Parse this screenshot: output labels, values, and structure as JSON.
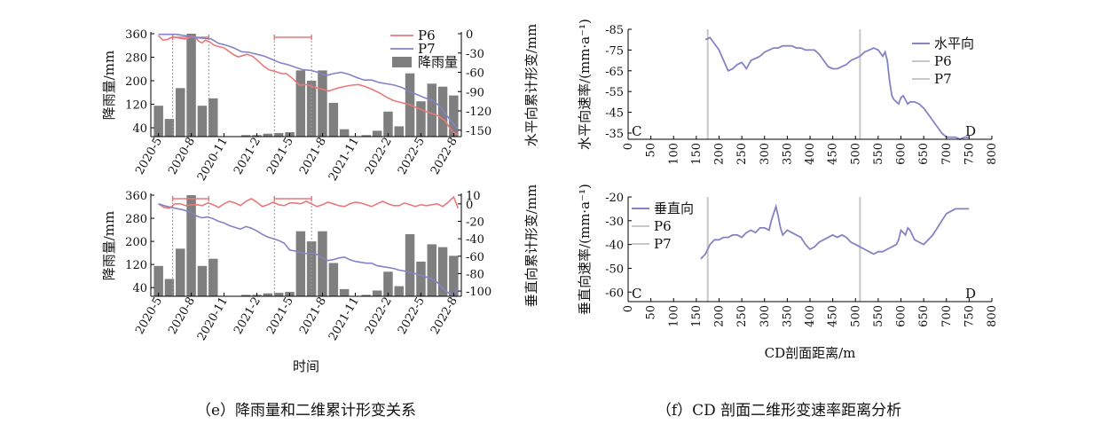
{
  "colors": {
    "p6": "#e8797a",
    "p7": "#8383c6",
    "bar": "#7f7f7f",
    "rain_marker": "#e8797a",
    "vline": "#c8c8c8"
  },
  "captions": {
    "left": "（e）降雨量和二维累计形变关系",
    "right": "（f）CD 剖面二维形变速率距离分析"
  },
  "chart_data": [
    {
      "id": "e-top",
      "type": "bar+line",
      "x_ticks": [
        "2020-5",
        "2020-8",
        "2020-11",
        "2021-2",
        "2021-5",
        "2021-8",
        "2021-11",
        "2022-2",
        "2022-5",
        "2022-8"
      ],
      "xlabel": "",
      "ylabel_left": "降雨量/mm",
      "ylabel_right": "水平向累计形变/mm",
      "ylim_left": [
        10,
        360
      ],
      "yticks_left": [
        40,
        120,
        200,
        280,
        360
      ],
      "ylim_right": [
        -160,
        0
      ],
      "yticks_right": [
        0,
        -30,
        -60,
        -90,
        -120,
        -150
      ],
      "legend": {
        "position": "top-right",
        "entries": [
          "P6",
          "P7",
          "降雨量"
        ]
      },
      "rain_periods": [
        [
          1.3,
          4.6
        ],
        [
          10.6,
          14.0
        ]
      ],
      "bars": {
        "name": "降雨量",
        "months": [
          0,
          1,
          2,
          3,
          4,
          5,
          8,
          9,
          10,
          11,
          12,
          13,
          14,
          15,
          16,
          17,
          18,
          19,
          20,
          21,
          22,
          23,
          24,
          25,
          26,
          27
        ],
        "values": [
          115,
          70,
          175,
          360,
          115,
          140,
          15,
          15,
          20,
          22,
          25,
          235,
          200,
          235,
          125,
          35,
          10,
          15,
          30,
          95,
          45,
          225,
          130,
          190,
          180,
          150
        ]
      },
      "series": [
        {
          "name": "P6",
          "x": [
            0,
            0.4,
            0.8,
            1.3,
            1.7,
            2.2,
            2.6,
            3.0,
            3.4,
            3.7,
            4.0,
            4.3,
            4.7,
            5.1,
            5.5,
            6.0,
            6.5,
            6.9,
            7.3,
            7.7,
            8.1,
            8.6,
            9.1,
            9.6,
            10.1,
            10.5,
            10.9,
            11.3,
            11.7,
            12.3,
            12.9,
            13.5,
            14.2,
            14.9,
            15.6,
            16.3,
            17.0,
            17.7,
            18.3,
            18.9,
            19.6,
            20.2,
            20.9,
            21.5,
            22.2,
            22.9,
            23.6,
            24.3,
            25.0,
            25.6,
            26.2,
            26.7,
            27.1,
            27.4
          ],
          "y": [
            -3,
            -10,
            -9,
            -5,
            -6,
            -8,
            -8,
            -4,
            -6,
            -12,
            -14,
            -10,
            -13,
            -18,
            -20,
            -22,
            -28,
            -33,
            -36,
            -34,
            -32,
            -35,
            -42,
            -50,
            -56,
            -58,
            -60,
            -62,
            -62,
            -70,
            -80,
            -79,
            -83,
            -86,
            -89,
            -85,
            -82,
            -80,
            -79,
            -82,
            -87,
            -92,
            -99,
            -104,
            -107,
            -110,
            -115,
            -120,
            -124,
            -128,
            -135,
            -148,
            -155,
            -157
          ]
        },
        {
          "name": "P7",
          "x": [
            0,
            0.8,
            1.6,
            2.4,
            3.2,
            4.0,
            4.8,
            5.5,
            6.2,
            6.9,
            7.6,
            8.3,
            9.0,
            9.7,
            10.4,
            11.1,
            11.8,
            12.5,
            13.2,
            13.9,
            14.6,
            15.3,
            16.0,
            16.7,
            17.4,
            18.1,
            18.8,
            19.5,
            20.2,
            20.9,
            21.6,
            22.3,
            23.0,
            23.7,
            24.4,
            25.1,
            25.8,
            26.4,
            26.9,
            27.2,
            27.4
          ],
          "y": [
            -1,
            -1,
            -1,
            -3,
            -6,
            -7,
            -8,
            -15,
            -18,
            -22,
            -28,
            -29,
            -32,
            -35,
            -40,
            -45,
            -48,
            -52,
            -56,
            -57,
            -60,
            -65,
            -62,
            -60,
            -63,
            -68,
            -72,
            -72,
            -76,
            -78,
            -80,
            -84,
            -90,
            -95,
            -100,
            -104,
            -114,
            -128,
            -138,
            -145,
            -148
          ]
        }
      ]
    },
    {
      "id": "e-bottom",
      "type": "bar+line",
      "x_ticks": [
        "2020-5",
        "2020-8",
        "2020-11",
        "2021-2",
        "2021-5",
        "2021-8",
        "2021-11",
        "2022-2",
        "2022-5",
        "2022-8"
      ],
      "xlabel": "时间",
      "ylabel_left": "降雨量/mm",
      "ylabel_right": "垂直向累计形变/mm",
      "ylim_left": [
        10,
        360
      ],
      "yticks_left": [
        40,
        120,
        200,
        280,
        360
      ],
      "ylim_right": [
        -106,
        10
      ],
      "yticks_right": [
        10,
        0,
        -20,
        -40,
        -60,
        -80,
        -100
      ],
      "rain_periods": [
        [
          1.3,
          4.6
        ],
        [
          10.6,
          14.0
        ]
      ],
      "bars": {
        "name": "降雨量",
        "months": [
          0,
          1,
          2,
          3,
          4,
          5,
          8,
          9,
          10,
          11,
          12,
          13,
          14,
          15,
          16,
          17,
          18,
          19,
          20,
          21,
          22,
          23,
          24,
          25,
          26,
          27
        ],
        "values": [
          115,
          70,
          175,
          360,
          115,
          140,
          15,
          15,
          20,
          22,
          25,
          235,
          200,
          235,
          125,
          35,
          10,
          15,
          30,
          95,
          45,
          225,
          130,
          190,
          180,
          150
        ]
      },
      "series": [
        {
          "name": "P6",
          "x": [
            0,
            0.5,
            1.0,
            1.5,
            2.0,
            2.5,
            3.0,
            3.5,
            4.0,
            4.5,
            5.0,
            5.5,
            6.0,
            6.5,
            7.0,
            7.5,
            8.0,
            8.5,
            9.0,
            9.5,
            10.0,
            10.5,
            11.0,
            11.5,
            12.0,
            12.5,
            13.0,
            13.5,
            14.0,
            14.5,
            15.0,
            15.5,
            16.0,
            16.5,
            17.0,
            17.5,
            18.0,
            18.5,
            19.0,
            19.5,
            20.0,
            20.5,
            21.0,
            21.5,
            22.0,
            22.5,
            23.0,
            23.5,
            24.0,
            24.5,
            25.0,
            25.5,
            26.0,
            26.5,
            27.0,
            27.4
          ],
          "y": [
            0,
            -4,
            -5,
            0,
            0,
            -2,
            -1,
            -1,
            -2,
            1,
            -1,
            -4,
            0,
            3,
            1,
            -2,
            3,
            6,
            2,
            -3,
            -1,
            2,
            -1,
            -2,
            1,
            1,
            0,
            3,
            0,
            -3,
            -1,
            2,
            0,
            -2,
            -3,
            0,
            2,
            1,
            -1,
            -3,
            0,
            3,
            0,
            -2,
            -2,
            1,
            -1,
            -3,
            -1,
            -2,
            -1,
            0,
            -3,
            2,
            8,
            -5
          ]
        },
        {
          "name": "P7",
          "x": [
            0,
            0.8,
            1.5,
            2.3,
            3.0,
            3.5,
            4.0,
            4.5,
            5.0,
            5.5,
            6.0,
            6.5,
            7.0,
            7.5,
            8.0,
            8.5,
            9.0,
            9.5,
            10.0,
            10.5,
            11.0,
            11.5,
            12.0,
            12.5,
            13.0,
            13.5,
            14.0,
            14.5,
            15.0,
            15.5,
            16.0,
            16.5,
            17.0,
            17.5,
            18.0,
            18.5,
            19.0,
            19.5,
            20.0,
            20.5,
            21.0,
            21.5,
            22.0,
            22.5,
            23.0,
            23.5,
            24.0,
            24.5,
            25.0,
            25.5,
            26.0,
            26.5,
            27.0,
            27.4
          ],
          "y": [
            0,
            -3,
            -5,
            -7,
            -10,
            -14,
            -16,
            -15,
            -17,
            -20,
            -22,
            -25,
            -27,
            -29,
            -26,
            -28,
            -31,
            -35,
            -38,
            -40,
            -42,
            -45,
            -53,
            -54,
            -56,
            -57,
            -56,
            -58,
            -62,
            -65,
            -64,
            -62,
            -61,
            -64,
            -66,
            -67,
            -68,
            -68,
            -71,
            -72,
            -73,
            -74,
            -76,
            -77,
            -79,
            -80,
            -82,
            -84,
            -86,
            -90,
            -97,
            -102,
            -104,
            -97
          ]
        }
      ]
    },
    {
      "id": "f-top",
      "type": "line",
      "xlim": [
        0,
        800
      ],
      "xticks": [
        0,
        50,
        100,
        150,
        200,
        250,
        300,
        350,
        400,
        450,
        500,
        550,
        600,
        650,
        700,
        750,
        800
      ],
      "xlabel": "",
      "ylabel": "水平向速率/(mm·a⁻¹)",
      "ylim": [
        -85,
        -32
      ],
      "yticks": [
        -85,
        -75,
        -65,
        -55,
        -45,
        -35
      ],
      "invert_y": true,
      "corner_labels": [
        "C",
        "D"
      ],
      "legend": {
        "position": "top-right",
        "entries": [
          "水平向",
          "P6",
          "P7"
        ]
      },
      "vlines": [
        {
          "name": "P6",
          "x": 175
        },
        {
          "name": "P7",
          "x": 510
        }
      ],
      "series": [
        {
          "name": "水平向",
          "x": [
            170,
            180,
            190,
            200,
            210,
            220,
            230,
            240,
            250,
            260,
            270,
            280,
            290,
            300,
            310,
            320,
            330,
            340,
            350,
            360,
            370,
            380,
            390,
            400,
            410,
            420,
            430,
            440,
            450,
            460,
            470,
            480,
            490,
            500,
            510,
            520,
            530,
            540,
            550,
            560,
            565,
            570,
            575,
            580,
            585,
            590,
            595,
            600,
            605,
            610,
            615,
            620,
            625,
            630,
            640,
            650,
            660,
            670,
            680,
            690,
            700,
            710,
            720,
            730,
            740,
            750
          ],
          "y": [
            -80,
            -81,
            -78,
            -75,
            -70,
            -65,
            -66,
            -68,
            -69,
            -66,
            -70,
            -71,
            -72,
            -74,
            -75,
            -76,
            -76,
            -77,
            -77,
            -77,
            -76,
            -76,
            -75,
            -75,
            -75,
            -73,
            -70,
            -67,
            -66,
            -66,
            -67,
            -68,
            -70,
            -71,
            -72,
            -74,
            -75,
            -76,
            -75,
            -72,
            -74,
            -70,
            -60,
            -53,
            -51,
            -50,
            -49,
            -52,
            -53,
            -51,
            -49,
            -50,
            -50,
            -50,
            -49,
            -47,
            -44,
            -41,
            -38,
            -35,
            -33,
            -33,
            -33,
            -32,
            -33,
            -33
          ]
        }
      ]
    },
    {
      "id": "f-bottom",
      "type": "line",
      "xlim": [
        0,
        800
      ],
      "xticks": [
        0,
        50,
        100,
        150,
        200,
        250,
        300,
        350,
        400,
        450,
        500,
        550,
        600,
        650,
        700,
        750,
        800
      ],
      "xlabel": "CD剖面距离/m",
      "ylabel": "垂直向速率/(mm·a⁻¹)",
      "ylim": [
        -64,
        -20
      ],
      "yticks": [
        -20,
        -30,
        -40,
        -50,
        -60
      ],
      "corner_labels": [
        "C",
        "D"
      ],
      "legend": {
        "position": "top-left",
        "entries": [
          "垂直向",
          "P6",
          "P7"
        ]
      },
      "vlines": [
        {
          "name": "P6",
          "x": 175
        },
        {
          "name": "P7",
          "x": 510
        }
      ],
      "series": [
        {
          "name": "垂直向",
          "x": [
            160,
            170,
            180,
            190,
            200,
            210,
            220,
            230,
            240,
            250,
            260,
            270,
            280,
            290,
            300,
            310,
            315,
            320,
            325,
            330,
            335,
            340,
            345,
            350,
            360,
            370,
            380,
            390,
            400,
            410,
            420,
            430,
            440,
            450,
            460,
            470,
            480,
            490,
            500,
            510,
            520,
            530,
            540,
            550,
            560,
            570,
            580,
            590,
            595,
            600,
            605,
            610,
            615,
            620,
            625,
            630,
            640,
            650,
            660,
            670,
            680,
            690,
            700,
            710,
            720,
            730,
            740,
            750
          ],
          "y": [
            -46,
            -44,
            -40,
            -38,
            -38,
            -37,
            -37,
            -36,
            -36,
            -37,
            -35,
            -34,
            -35,
            -33,
            -33,
            -34,
            -30,
            -27,
            -24,
            -28,
            -33,
            -36,
            -35,
            -34,
            -35,
            -36,
            -37,
            -40,
            -42,
            -41,
            -39,
            -38,
            -37,
            -36,
            -37,
            -36,
            -37,
            -39,
            -40,
            -41,
            -42,
            -43,
            -44,
            -43,
            -43,
            -42,
            -41,
            -40,
            -38,
            -34,
            -35,
            -36,
            -33,
            -34,
            -36,
            -38,
            -39,
            -40,
            -38,
            -36,
            -33,
            -30,
            -27,
            -26,
            -25,
            -25,
            -25,
            -25
          ]
        }
      ]
    }
  ]
}
